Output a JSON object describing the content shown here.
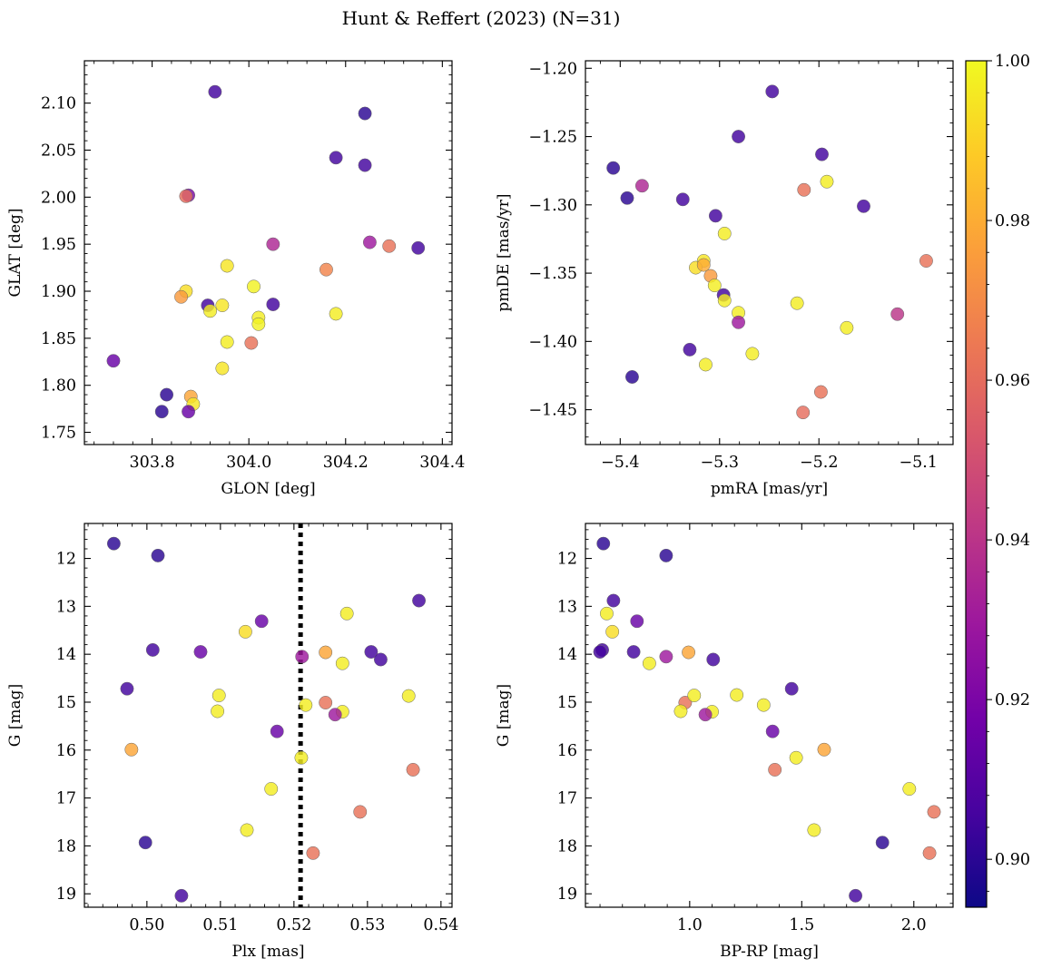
{
  "figure": {
    "title": "Hunt & Reffert (2023) (N=31)"
  },
  "colorbar": {
    "min": 0.894,
    "max": 1.0,
    "ticks": [
      0.9,
      0.92,
      0.94,
      0.96,
      0.98,
      1.0
    ],
    "tick_labels": [
      "0.90",
      "0.92",
      "0.94",
      "0.96",
      "0.98",
      "1.00"
    ],
    "colormap": "plasma",
    "stops": [
      "#0d0887",
      "#46039f",
      "#7201a8",
      "#9c179e",
      "#bd3786",
      "#d8576b",
      "#ed7953",
      "#fb9f3a",
      "#fdca26",
      "#f0f921"
    ]
  },
  "chart_data": [
    {
      "type": "scatter",
      "id": "glon-glat",
      "xlabel": "GLON [deg]",
      "ylabel": "GLAT [deg]",
      "xlim": [
        303.66,
        304.42
      ],
      "ylim": [
        1.737,
        2.145
      ],
      "xticks": [
        303.8,
        304.0,
        304.2,
        304.4
      ],
      "xtick_labels": [
        "303.8",
        "304.0",
        "304.2",
        "304.4"
      ],
      "yticks": [
        1.75,
        1.8,
        1.85,
        1.9,
        1.95,
        2.0,
        2.05,
        2.1
      ],
      "ytick_labels": [
        "1.75",
        "1.80",
        "1.85",
        "1.90",
        "1.95",
        "2.00",
        "2.05",
        "2.10"
      ],
      "x": [
        303.93,
        304.24,
        304.18,
        304.24,
        303.875,
        303.87,
        304.05,
        304.25,
        304.29,
        304.35,
        304.16,
        303.955,
        303.87,
        303.86,
        304.01,
        304.05,
        303.915,
        303.945,
        303.92,
        304.02,
        304.02,
        304.18,
        303.955,
        304.005,
        303.72,
        303.945,
        303.83,
        303.88,
        303.885,
        303.82,
        303.875
      ],
      "y": [
        2.112,
        2.089,
        2.042,
        2.034,
        2.002,
        2.001,
        1.95,
        1.952,
        1.948,
        1.946,
        1.923,
        1.927,
        1.9,
        1.894,
        1.905,
        1.886,
        1.885,
        1.885,
        1.879,
        1.872,
        1.865,
        1.876,
        1.846,
        1.845,
        1.826,
        1.818,
        1.79,
        1.788,
        1.78,
        1.772,
        1.772
      ],
      "c": [
        0.905,
        0.9,
        0.905,
        0.905,
        0.92,
        0.96,
        0.935,
        0.93,
        0.962,
        0.905,
        0.968,
        0.995,
        0.993,
        0.975,
        0.998,
        0.905,
        0.905,
        0.995,
        0.997,
        0.997,
        0.998,
        0.997,
        0.997,
        0.962,
        0.915,
        0.995,
        0.9,
        0.978,
        0.995,
        0.9,
        0.915
      ]
    },
    {
      "type": "scatter",
      "id": "pmra-pmde",
      "xlabel": "pmRA [mas/yr]",
      "ylabel": "pmDE [mas/yr]",
      "xlim": [
        -5.435,
        -5.065
      ],
      "ylim": [
        -1.4755,
        -1.1945
      ],
      "xticks": [
        -5.4,
        -5.3,
        -5.2,
        -5.1
      ],
      "xtick_labels": [
        "−5.4",
        "−5.3",
        "−5.2",
        "−5.1"
      ],
      "yticks": [
        -1.45,
        -1.4,
        -1.35,
        -1.3,
        -1.25,
        -1.2
      ],
      "ytick_labels": [
        "−1.45",
        "−1.40",
        "−1.35",
        "−1.30",
        "−1.25",
        "−1.20"
      ],
      "x": [
        -5.247,
        -5.281,
        -5.407,
        -5.197,
        -5.393,
        -5.378,
        -5.337,
        -5.215,
        -5.192,
        -5.155,
        -5.304,
        -5.295,
        -5.316,
        -5.324,
        -5.309,
        -5.305,
        -5.092,
        -5.296,
        -5.295,
        -5.281,
        -5.222,
        -5.281,
        -5.121,
        -5.172,
        -5.33,
        -5.267,
        -5.388,
        -5.314,
        -5.198,
        -5.216,
        -5.316
      ],
      "y": [
        -1.217,
        -1.25,
        -1.273,
        -1.263,
        -1.295,
        -1.286,
        -1.296,
        -1.289,
        -1.283,
        -1.301,
        -1.308,
        -1.321,
        -1.341,
        -1.346,
        -1.352,
        -1.359,
        -1.341,
        -1.366,
        -1.37,
        -1.379,
        -1.372,
        -1.386,
        -1.38,
        -1.39,
        -1.406,
        -1.409,
        -1.426,
        -1.417,
        -1.437,
        -1.452,
        -1.344
      ],
      "c": [
        0.905,
        0.905,
        0.9,
        0.905,
        0.9,
        0.935,
        0.905,
        0.962,
        0.997,
        0.905,
        0.905,
        0.997,
        0.995,
        0.993,
        0.975,
        0.997,
        0.962,
        0.905,
        0.997,
        0.997,
        0.997,
        0.93,
        0.94,
        0.997,
        0.905,
        0.997,
        0.9,
        0.997,
        0.962,
        0.96,
        0.98
      ]
    },
    {
      "type": "scatter",
      "id": "plx-g",
      "xlabel": "Plx [mas]",
      "ylabel": "G [mag]",
      "xlim": [
        0.4915,
        0.5415
      ],
      "ylim": [
        19.28,
        11.27
      ],
      "y_inverted": true,
      "xticks": [
        0.5,
        0.51,
        0.52,
        0.53,
        0.54
      ],
      "xtick_labels": [
        "0.50",
        "0.51",
        "0.52",
        "0.53",
        "0.54"
      ],
      "yticks": [
        12,
        13,
        14,
        15,
        16,
        17,
        18,
        19
      ],
      "ytick_labels": [
        "12",
        "13",
        "14",
        "15",
        "16",
        "17",
        "18",
        "19"
      ],
      "vline": {
        "x": 0.5209,
        "style": "dotted",
        "color": "#000000"
      },
      "x": [
        0.4955,
        0.5015,
        0.537,
        0.5272,
        0.5134,
        0.5156,
        0.5008,
        0.5073,
        0.5211,
        0.5243,
        0.5305,
        0.5318,
        0.5266,
        0.4973,
        0.5356,
        0.5098,
        0.5096,
        0.5216,
        0.5243,
        0.5266,
        0.5256,
        0.5177,
        0.4979,
        0.521,
        0.5362,
        0.5169,
        0.529,
        0.5136,
        0.4998,
        0.5226,
        0.5047
      ],
      "y": [
        11.69,
        11.94,
        12.88,
        13.15,
        13.53,
        13.31,
        13.91,
        13.95,
        14.05,
        13.96,
        13.95,
        14.11,
        14.19,
        14.72,
        14.87,
        14.86,
        15.19,
        15.06,
        15.01,
        15.2,
        15.26,
        15.61,
        15.99,
        16.16,
        16.41,
        16.81,
        17.29,
        17.67,
        17.93,
        18.15,
        19.04
      ],
      "c": [
        0.9,
        0.9,
        0.905,
        0.997,
        0.993,
        0.915,
        0.905,
        0.915,
        0.93,
        0.978,
        0.905,
        0.905,
        0.997,
        0.905,
        0.997,
        0.997,
        0.997,
        0.997,
        0.962,
        0.997,
        0.93,
        0.915,
        0.978,
        0.997,
        0.962,
        0.997,
        0.962,
        0.997,
        0.9,
        0.962,
        0.905
      ]
    },
    {
      "type": "scatter",
      "id": "bprp-g",
      "xlabel": "BP-RP [mag]",
      "ylabel": "G [mag]",
      "xlim": [
        0.535,
        2.175
      ],
      "ylim": [
        19.28,
        11.27
      ],
      "y_inverted": true,
      "xticks": [
        1.0,
        1.5,
        2.0
      ],
      "xtick_labels": [
        "1.0",
        "1.5",
        "2.0"
      ],
      "yticks": [
        12,
        13,
        14,
        15,
        16,
        17,
        18,
        19
      ],
      "ytick_labels": [
        "12",
        "13",
        "14",
        "15",
        "16",
        "17",
        "18",
        "19"
      ],
      "x": [
        0.615,
        0.895,
        0.66,
        0.63,
        0.655,
        0.765,
        0.61,
        0.6,
        0.75,
        0.895,
        0.995,
        1.105,
        0.82,
        1.455,
        0.98,
        1.02,
        0.96,
        1.21,
        1.33,
        1.1,
        1.07,
        1.37,
        1.6,
        1.475,
        1.38,
        1.98,
        2.09,
        1.555,
        1.86,
        2.07,
        1.74
      ],
      "y": [
        11.69,
        11.94,
        12.88,
        13.15,
        13.53,
        13.31,
        13.91,
        13.95,
        13.95,
        14.05,
        13.96,
        14.11,
        14.19,
        14.72,
        15.01,
        14.86,
        15.19,
        14.85,
        15.06,
        15.2,
        15.26,
        15.61,
        15.99,
        16.16,
        16.41,
        16.81,
        17.29,
        17.67,
        17.93,
        18.15,
        19.04
      ],
      "c": [
        0.9,
        0.9,
        0.905,
        0.997,
        0.993,
        0.915,
        0.905,
        0.905,
        0.905,
        0.93,
        0.978,
        0.905,
        0.997,
        0.905,
        0.962,
        0.997,
        0.997,
        0.997,
        0.997,
        0.997,
        0.93,
        0.915,
        0.978,
        0.997,
        0.962,
        0.997,
        0.962,
        0.997,
        0.9,
        0.962,
        0.905
      ]
    }
  ]
}
